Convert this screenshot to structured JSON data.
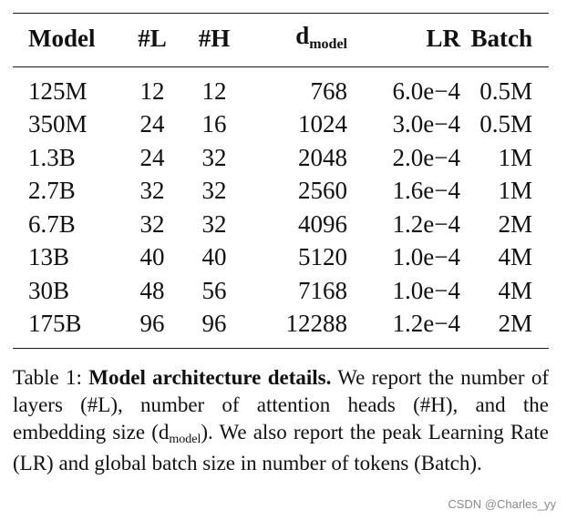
{
  "table": {
    "headers": {
      "model": "Model",
      "layers": "#L",
      "heads": "#H",
      "d_main": "d",
      "d_sub": "model",
      "lr": "LR",
      "batch": "Batch"
    },
    "rows": [
      {
        "model": "125M",
        "layers": "12",
        "heads": "12",
        "d_model": "768",
        "lr": "6.0e−4",
        "batch": "0.5M"
      },
      {
        "model": "350M",
        "layers": "24",
        "heads": "16",
        "d_model": "1024",
        "lr": "3.0e−4",
        "batch": "0.5M"
      },
      {
        "model": "1.3B",
        "layers": "24",
        "heads": "32",
        "d_model": "2048",
        "lr": "2.0e−4",
        "batch": "1M"
      },
      {
        "model": "2.7B",
        "layers": "32",
        "heads": "32",
        "d_model": "2560",
        "lr": "1.6e−4",
        "batch": "1M"
      },
      {
        "model": "6.7B",
        "layers": "32",
        "heads": "32",
        "d_model": "4096",
        "lr": "1.2e−4",
        "batch": "2M"
      },
      {
        "model": "13B",
        "layers": "40",
        "heads": "40",
        "d_model": "5120",
        "lr": "1.0e−4",
        "batch": "4M"
      },
      {
        "model": "30B",
        "layers": "48",
        "heads": "56",
        "d_model": "7168",
        "lr": "1.0e−4",
        "batch": "4M"
      },
      {
        "model": "175B",
        "layers": "96",
        "heads": "96",
        "d_model": "12288",
        "lr": "1.2e−4",
        "batch": "2M"
      }
    ]
  },
  "caption": {
    "label": "Table 1:",
    "bold_title": "Model architecture details.",
    "text_part1": "We report the number of layers (#L), number of attention heads (#H), and the embedding size (d",
    "sub": "model",
    "text_part2": "). We also report the peak Learning Rate (LR) and global batch size in number of tokens (Batch)."
  },
  "watermark": "CSDN @Charles_yy"
}
